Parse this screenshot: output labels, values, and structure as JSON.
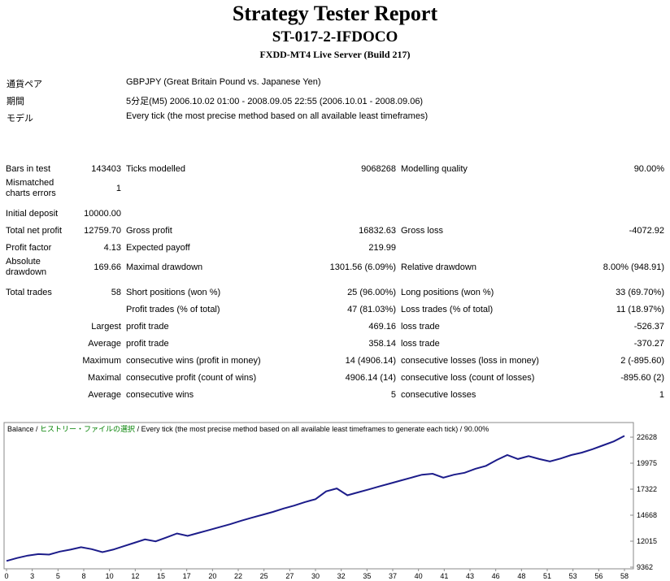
{
  "header": {
    "title": "Strategy Tester Report",
    "subtitle": "ST-017-2-IFDOCO",
    "server": "FXDD-MT4 Live Server (Build 217)"
  },
  "info": [
    {
      "label": "通貨ペア",
      "value": "GBPJPY (Great Britain Pound vs. Japanese Yen)"
    },
    {
      "label": "期間",
      "value": "5分足(M5) 2006.10.02 01:00 - 2008.09.05 22:55 (2006.10.01 - 2008.09.06)"
    },
    {
      "label": "モデル",
      "value": "Every tick (the most precise method based on all available least timeframes)"
    }
  ],
  "stats": {
    "sections": [
      [
        [
          "Bars in test",
          "143403",
          "Ticks modelled",
          "9068268",
          "Modelling quality",
          "90.00%"
        ],
        [
          "Mismatched charts errors",
          "1",
          null,
          null,
          null,
          null
        ]
      ],
      [
        [
          "Initial deposit",
          "10000.00",
          null,
          null,
          null,
          null
        ],
        [
          "Total net profit",
          "12759.70",
          "Gross profit",
          "16832.63",
          "Gross loss",
          "-4072.92"
        ],
        [
          "Profit factor",
          "4.13",
          "Expected payoff",
          "219.99",
          null,
          null
        ],
        [
          "Absolute drawdown",
          "169.66",
          "Maximal drawdown",
          "1301.56 (6.09%)",
          "Relative drawdown",
          "8.00% (948.91)"
        ]
      ],
      [
        [
          "Total trades",
          "58",
          "Short positions (won %)",
          "25 (96.00%)",
          "Long positions (won %)",
          "33 (69.70%)"
        ],
        [
          null,
          null,
          "Profit trades (% of total)",
          "47 (81.03%)",
          "Loss trades (% of total)",
          "11 (18.97%)"
        ],
        [
          null,
          "Largest",
          "profit trade",
          "469.16",
          "loss trade",
          "-526.37"
        ],
        [
          null,
          "Average",
          "profit trade",
          "358.14",
          "loss trade",
          "-370.27"
        ],
        [
          null,
          "Maximum",
          "consecutive wins (profit in money)",
          "14 (4906.14)",
          "consecutive losses (loss in money)",
          "2 (-895.60)"
        ],
        [
          null,
          "Maximal",
          "consecutive profit (count of wins)",
          "4906.14 (14)",
          "consecutive loss (count of losses)",
          "-895.60 (2)"
        ],
        [
          null,
          "Average",
          "consecutive wins",
          "5",
          "consecutive losses",
          "1"
        ]
      ]
    ]
  },
  "chart_data": {
    "type": "line",
    "legend": {
      "separator": " / ",
      "parts": [
        {
          "text": "Balance",
          "color": "#000000"
        },
        {
          "text": "ヒストリー・ファイルの選択",
          "color": "#008000"
        },
        {
          "text": "Every tick (the most precise method based on all available least timeframes to generate each tick)",
          "color": "#000000"
        },
        {
          "text": "90.00%",
          "color": "#000000"
        }
      ]
    },
    "series": [
      {
        "name": "Balance",
        "color": "#1c1c8a",
        "values": [
          10000,
          10300,
          10550,
          10700,
          10650,
          10950,
          11150,
          11400,
          11200,
          10900,
          11150,
          11500,
          11850,
          12200,
          12000,
          12400,
          12800,
          12550,
          12850,
          13150,
          13450,
          13750,
          14100,
          14400,
          14700,
          15000,
          15350,
          15650,
          16000,
          16300,
          17100,
          17400,
          16700,
          17000,
          17300,
          17600,
          17900,
          18200,
          18500,
          18800,
          18900,
          18500,
          18800,
          19000,
          19400,
          19700,
          20300,
          20800,
          20400,
          20700,
          20400,
          20150,
          20450,
          20800,
          21050,
          21400,
          21800,
          22200,
          22759.7
        ]
      }
    ],
    "xticks": [
      0,
      3,
      5,
      8,
      10,
      12,
      15,
      17,
      20,
      22,
      25,
      27,
      30,
      32,
      35,
      37,
      40,
      41,
      43,
      46,
      48,
      51,
      53,
      56,
      58
    ],
    "ylim": [
      9362,
      22628
    ],
    "yticks": [
      9362,
      12015,
      14668,
      17322,
      19975,
      22628
    ]
  }
}
